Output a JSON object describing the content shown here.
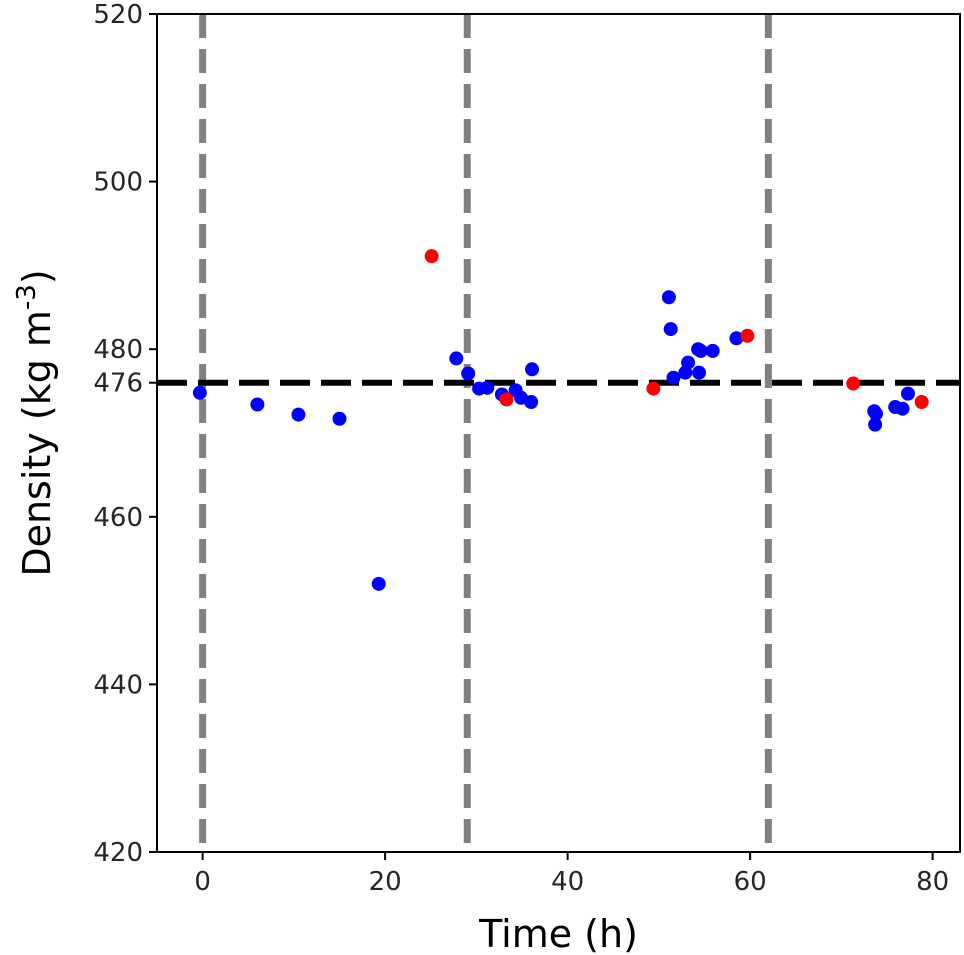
{
  "chart_data": {
    "type": "scatter",
    "title": "",
    "xlabel": "Time (h)",
    "ylabel_main": "Density (kg m",
    "ylabel_sup": "-3",
    "ylabel_close": ")",
    "xlim": [
      -5,
      83
    ],
    "ylim": [
      420,
      520
    ],
    "xticks": [
      0,
      20,
      40,
      60,
      80
    ],
    "yticks": [
      420,
      440,
      460,
      476,
      480,
      500,
      520
    ],
    "grid": false,
    "reference_line": {
      "y": 476,
      "color": "#000000",
      "style": "dashed"
    },
    "vertical_lines": {
      "x": [
        0,
        29,
        62
      ],
      "color": "#808080",
      "style": "dashed"
    },
    "series": [
      {
        "color": "#0000ff",
        "points": [
          [
            -0.3,
            474.8
          ],
          [
            6,
            473.4
          ],
          [
            10.5,
            472.2
          ],
          [
            15,
            471.7
          ],
          [
            19.3,
            452
          ],
          [
            27.8,
            478.9
          ],
          [
            29.1,
            477.1
          ],
          [
            30.3,
            475.3
          ],
          [
            31.2,
            475.4
          ],
          [
            32.8,
            474.6
          ],
          [
            34.3,
            475.1
          ],
          [
            34.9,
            474.2
          ],
          [
            36,
            473.7
          ],
          [
            36.1,
            477.6
          ],
          [
            51.1,
            486.2
          ],
          [
            51.3,
            482.4
          ],
          [
            51.6,
            476.6
          ],
          [
            52.9,
            477.2
          ],
          [
            53.2,
            478.4
          ],
          [
            54.3,
            480
          ],
          [
            54.4,
            477.2
          ],
          [
            54.6,
            479.8
          ],
          [
            55.9,
            479.8
          ],
          [
            58.5,
            481.3
          ],
          [
            73.6,
            472.6
          ],
          [
            73.7,
            471
          ],
          [
            73.8,
            472.3
          ],
          [
            75.9,
            473.1
          ],
          [
            76.7,
            472.9
          ],
          [
            77.3,
            474.7
          ]
        ]
      },
      {
        "color": "#ff0000",
        "points": [
          [
            25.1,
            491.1
          ],
          [
            33.3,
            474
          ],
          [
            49.4,
            475.3
          ],
          [
            59.7,
            481.6
          ],
          [
            71.3,
            475.9
          ],
          [
            78.8,
            473.7
          ]
        ]
      }
    ]
  }
}
